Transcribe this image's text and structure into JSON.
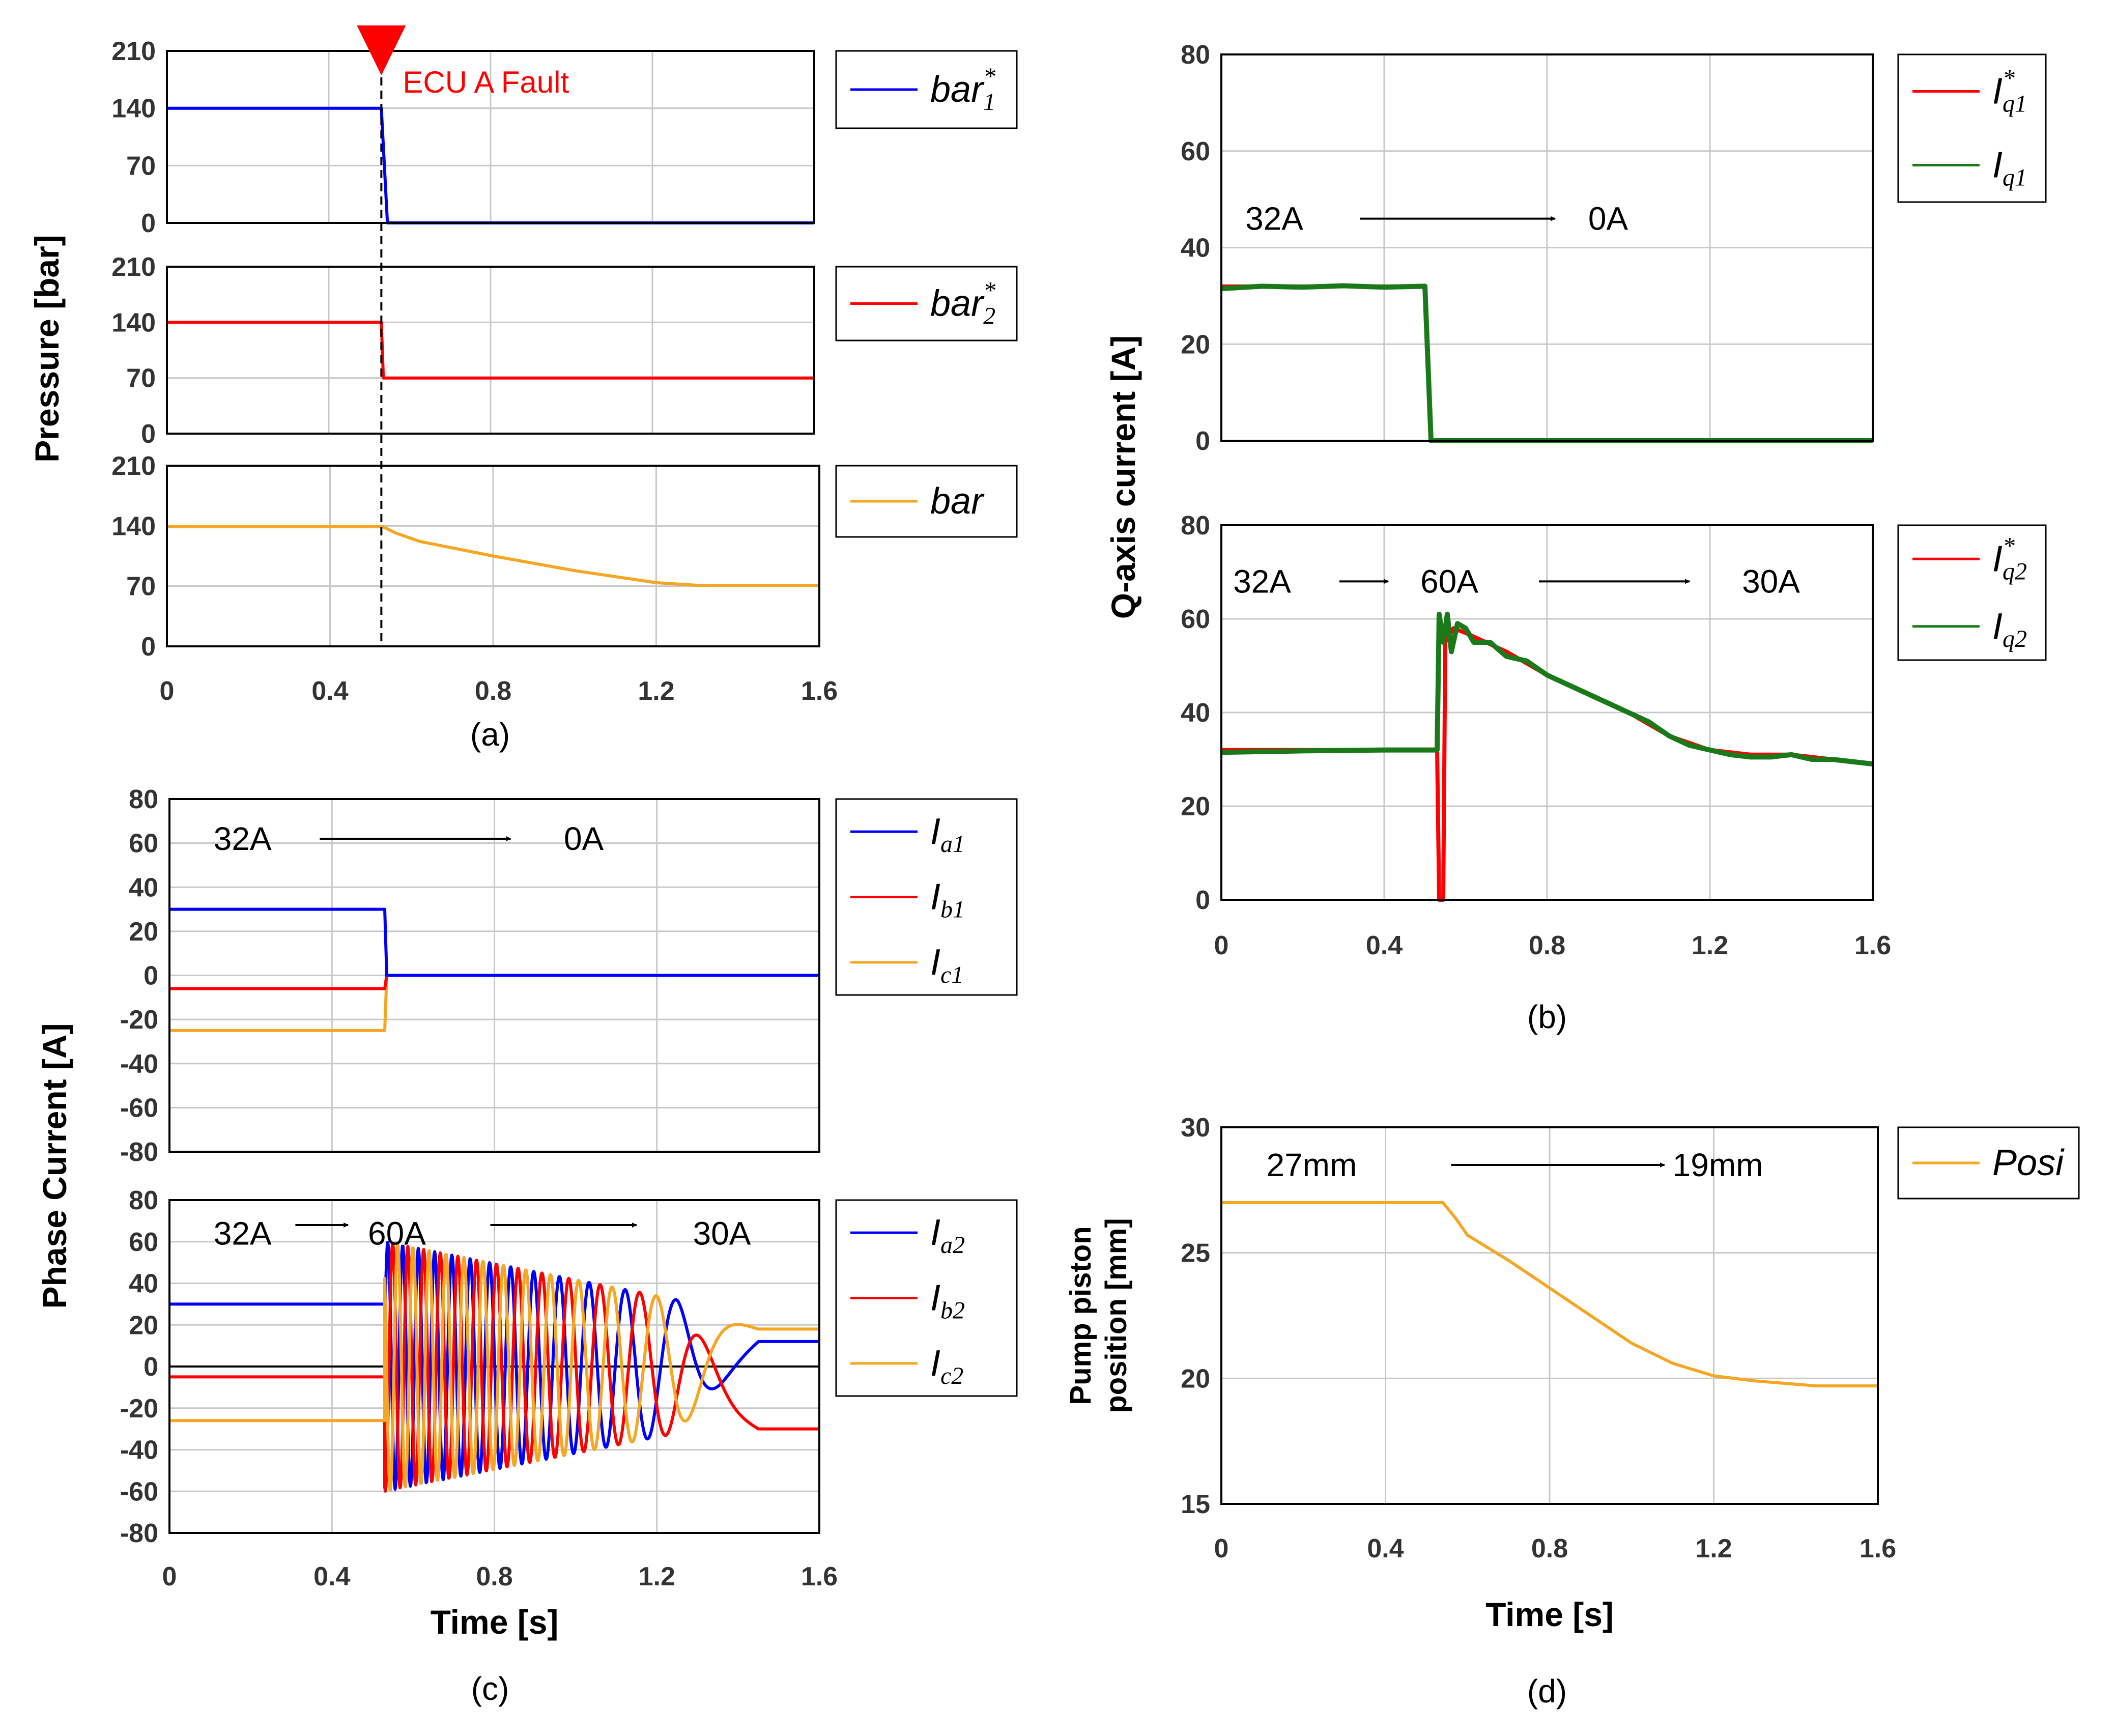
{
  "chart_data": [
    {
      "id": "a",
      "caption": "(a)",
      "type": "line",
      "ylabel": "Pressure [bar]",
      "fault_label": "ECU A Fault",
      "fault_time": 0.53,
      "x_ticks": [
        "0",
        "0.4",
        "0.8",
        "1.2",
        "1.6"
      ],
      "xlim": [
        0,
        1.6
      ],
      "subplots": [
        {
          "ylim": [
            0,
            210
          ],
          "y_ticks": [
            "0",
            "70",
            "140",
            "210"
          ],
          "legend": [
            {
              "label": "bar",
              "sub": "1",
              "sup": "*",
              "color": "#0000ff"
            }
          ],
          "series": [
            {
              "name": "bar1*",
              "color": "#0000ff",
              "points": [
                [
                  0,
                  140
                ],
                [
                  0.53,
                  140
                ],
                [
                  0.545,
                  0
                ],
                [
                  1.6,
                  0
                ]
              ]
            }
          ]
        },
        {
          "ylim": [
            0,
            210
          ],
          "y_ticks": [
            "0",
            "70",
            "140",
            "210"
          ],
          "legend": [
            {
              "label": "bar",
              "sub": "2",
              "sup": "*",
              "color": "#ff0000"
            }
          ],
          "series": [
            {
              "name": "bar2*",
              "color": "#ff0000",
              "points": [
                [
                  0,
                  140
                ],
                [
                  0.53,
                  140
                ],
                [
                  0.535,
                  70
                ],
                [
                  1.6,
                  70
                ]
              ]
            }
          ]
        },
        {
          "ylim": [
            0,
            210
          ],
          "y_ticks": [
            "0",
            "70",
            "140",
            "210"
          ],
          "legend": [
            {
              "label": "bar",
              "sub": "",
              "sup": "",
              "color": "#f5a623"
            }
          ],
          "series": [
            {
              "name": "bar",
              "color": "#f5a623",
              "points": [
                [
                  0,
                  139
                ],
                [
                  0.53,
                  139
                ],
                [
                  0.56,
                  132
                ],
                [
                  0.62,
                  122
                ],
                [
                  0.8,
                  105
                ],
                [
                  1.0,
                  88
                ],
                [
                  1.2,
                  74
                ],
                [
                  1.3,
                  71
                ],
                [
                  1.6,
                  71
                ]
              ]
            }
          ]
        }
      ]
    },
    {
      "id": "b",
      "caption": "(b)",
      "type": "line",
      "ylabel": "Q-axis current [A]",
      "x_ticks": [
        "0",
        "0.4",
        "0.8",
        "1.2",
        "1.6"
      ],
      "xlim": [
        0,
        1.6
      ],
      "subplots": [
        {
          "ylim": [
            0,
            80
          ],
          "y_ticks": [
            "0",
            "20",
            "40",
            "60",
            "80"
          ],
          "annotations": [
            {
              "text": "32A",
              "x": 0.13,
              "y": 46
            },
            {
              "text": "0A",
              "x": 0.95,
              "y": 46
            }
          ],
          "arrows": [
            {
              "x0": 0.34,
              "x1": 0.82,
              "y": 46
            }
          ],
          "legend": [
            {
              "label": "I",
              "sub": "q1",
              "sup": "*",
              "color": "#ff0000"
            },
            {
              "label": "I",
              "sub": "q1",
              "sup": "",
              "color": "#1a7a1a"
            }
          ],
          "series": [
            {
              "name": "Iq1*",
              "color": "#ff0000",
              "width": 7,
              "points": [
                [
                  0,
                  32
                ],
                [
                  0.5,
                  32
                ],
                [
                  0.515,
                  0
                ],
                [
                  1.6,
                  0
                ]
              ]
            },
            {
              "name": "Iq1",
              "color": "#1a7a1a",
              "width": 10,
              "points": [
                [
                  0,
                  31.5
                ],
                [
                  0.1,
                  32
                ],
                [
                  0.2,
                  31.8
                ],
                [
                  0.3,
                  32.1
                ],
                [
                  0.4,
                  31.8
                ],
                [
                  0.5,
                  32
                ],
                [
                  0.515,
                  0
                ],
                [
                  1.6,
                  0
                ]
              ]
            }
          ]
        },
        {
          "ylim": [
            0,
            80
          ],
          "y_ticks": [
            "0",
            "20",
            "40",
            "60",
            "80"
          ],
          "annotations": [
            {
              "text": "32A",
              "x": 0.1,
              "y": 68
            },
            {
              "text": "60A",
              "x": 0.56,
              "y": 68
            },
            {
              "text": "30A",
              "x": 1.35,
              "y": 68
            }
          ],
          "arrows": [
            {
              "x0": 0.29,
              "x1": 0.41,
              "y": 68
            },
            {
              "x0": 0.78,
              "x1": 1.15,
              "y": 68
            }
          ],
          "legend": [
            {
              "label": "I",
              "sub": "q2",
              "sup": "*",
              "color": "#ff0000"
            },
            {
              "label": "I",
              "sub": "q2",
              "sup": "",
              "color": "#1a7a1a"
            }
          ],
          "series": [
            {
              "name": "Iq2*",
              "color": "#ff0000",
              "width": 8,
              "points": [
                [
                  0,
                  32
                ],
                [
                  0.53,
                  32
                ],
                [
                  0.535,
                  0
                ],
                [
                  0.545,
                  0
                ],
                [
                  0.55,
                  55
                ],
                [
                  0.57,
                  58
                ],
                [
                  0.6,
                  57
                ],
                [
                  0.7,
                  53
                ],
                [
                  0.8,
                  48
                ],
                [
                  0.9,
                  44
                ],
                [
                  1.0,
                  40
                ],
                [
                  1.1,
                  35
                ],
                [
                  1.2,
                  32
                ],
                [
                  1.3,
                  31
                ],
                [
                  1.4,
                  31
                ],
                [
                  1.6,
                  29
                ]
              ]
            },
            {
              "name": "Iq2",
              "color": "#1a7a1a",
              "width": 10,
              "points": [
                [
                  0,
                  31.5
                ],
                [
                  0.2,
                  31.8
                ],
                [
                  0.4,
                  32
                ],
                [
                  0.53,
                  32
                ],
                [
                  0.535,
                  61
                ],
                [
                  0.545,
                  55
                ],
                [
                  0.555,
                  61
                ],
                [
                  0.565,
                  53
                ],
                [
                  0.58,
                  59
                ],
                [
                  0.6,
                  58
                ],
                [
                  0.62,
                  55
                ],
                [
                  0.66,
                  55
                ],
                [
                  0.7,
                  52
                ],
                [
                  0.75,
                  51
                ],
                [
                  0.8,
                  48
                ],
                [
                  0.85,
                  46
                ],
                [
                  0.9,
                  44
                ],
                [
                  0.95,
                  42
                ],
                [
                  1.0,
                  40
                ],
                [
                  1.05,
                  38
                ],
                [
                  1.1,
                  35
                ],
                [
                  1.15,
                  33
                ],
                [
                  1.2,
                  32
                ],
                [
                  1.25,
                  31
                ],
                [
                  1.3,
                  30.5
                ],
                [
                  1.35,
                  30.5
                ],
                [
                  1.4,
                  31
                ],
                [
                  1.45,
                  30
                ],
                [
                  1.5,
                  30
                ],
                [
                  1.6,
                  29
                ]
              ]
            }
          ]
        }
      ]
    },
    {
      "id": "c",
      "caption": "(c)",
      "type": "line",
      "ylabel": "Phase Current [A]",
      "xlabel": "Time [s]",
      "x_ticks": [
        "0",
        "0.4",
        "0.8",
        "1.2",
        "1.6"
      ],
      "xlim": [
        0,
        1.6
      ],
      "subplots": [
        {
          "ylim": [
            -80,
            80
          ],
          "y_ticks": [
            "-80",
            "-60",
            "-40",
            "-20",
            "0",
            "20",
            "40",
            "60",
            "80"
          ],
          "annotations": [
            {
              "text": "32A",
              "x": 0.18,
              "y": 62
            },
            {
              "text": "0A",
              "x": 1.02,
              "y": 62
            }
          ],
          "arrows": [
            {
              "x0": 0.37,
              "x1": 0.84,
              "y": 62
            }
          ],
          "legend": [
            {
              "label": "I",
              "sub": "a1",
              "sup": "",
              "color": "#0000ff"
            },
            {
              "label": "I",
              "sub": "b1",
              "sup": "",
              "color": "#ff0000"
            },
            {
              "label": "I",
              "sub": "c1",
              "sup": "",
              "color": "#f5a623"
            }
          ],
          "series": [
            {
              "name": "Ic1",
              "color": "#f5a623",
              "points": [
                [
                  0,
                  -25
                ],
                [
                  0.53,
                  -25
                ],
                [
                  0.535,
                  0
                ],
                [
                  1.6,
                  0
                ]
              ]
            },
            {
              "name": "Ib1",
              "color": "#ff0000",
              "points": [
                [
                  0,
                  -6
                ],
                [
                  0.53,
                  -6
                ],
                [
                  0.535,
                  0
                ],
                [
                  1.6,
                  0
                ]
              ]
            },
            {
              "name": "Ia1",
              "color": "#0000ff",
              "points": [
                [
                  0,
                  30
                ],
                [
                  0.53,
                  30
                ],
                [
                  0.535,
                  0
                ],
                [
                  1.6,
                  0
                ]
              ]
            }
          ]
        },
        {
          "ylim": [
            -80,
            80
          ],
          "y_ticks": [
            "-80",
            "-60",
            "-40",
            "-20",
            "0",
            "20",
            "40",
            "60",
            "80"
          ],
          "annotations": [
            {
              "text": "32A",
              "x": 0.18,
              "y": 64
            },
            {
              "text": "60A",
              "x": 0.56,
              "y": 64
            },
            {
              "text": "30A",
              "x": 1.36,
              "y": 64
            }
          ],
          "arrows": [
            {
              "x0": 0.31,
              "x1": 0.44,
              "y": 68
            },
            {
              "x0": 0.79,
              "x1": 1.15,
              "y": 68
            }
          ],
          "zero_line": true,
          "legend": [
            {
              "label": "I",
              "sub": "a2",
              "sup": "",
              "color": "#0000ff"
            },
            {
              "label": "I",
              "sub": "b2",
              "sup": "",
              "color": "#ff0000"
            },
            {
              "label": "I",
              "sub": "c2",
              "sup": "",
              "color": "#f5a623"
            }
          ],
          "phase_model": {
            "t_start": 0.53,
            "t_end_osc": 1.25,
            "freq_start_hz": 28,
            "freq_end_hz": 6,
            "amp_start": 60,
            "amp_end": 32,
            "pre_values": {
              "a": 30,
              "b": -5,
              "c": -26
            },
            "end_values": {
              "a": 12,
              "b": -30,
              "c": 18
            }
          },
          "series": [
            {
              "name": "Ia2",
              "color": "#0000ff"
            },
            {
              "name": "Ib2",
              "color": "#ff0000"
            },
            {
              "name": "Ic2",
              "color": "#f5a623"
            }
          ]
        }
      ]
    },
    {
      "id": "d",
      "caption": "(d)",
      "type": "line",
      "ylabel": "Pump piston position [mm]",
      "ylabel_lines": [
        "Pump piston",
        "position [mm]"
      ],
      "xlabel": "Time [s]",
      "x_ticks": [
        "0",
        "0.4",
        "0.8",
        "1.2",
        "1.6"
      ],
      "xlim": [
        0,
        1.6
      ],
      "subplots": [
        {
          "ylim": [
            15,
            30
          ],
          "y_ticks": [
            "15",
            "20",
            "25",
            "30"
          ],
          "annotations": [
            {
              "text": "27mm",
              "x": 0.22,
              "y": 28.5
            },
            {
              "text": "19mm",
              "x": 1.21,
              "y": 28.5
            }
          ],
          "arrows": [
            {
              "x0": 0.56,
              "x1": 1.08,
              "y": 28.5
            }
          ],
          "legend": [
            {
              "label": "Posi",
              "sub": "",
              "sup": "",
              "color": "#f5a623"
            }
          ],
          "series": [
            {
              "name": "Posi",
              "color": "#f5a623",
              "points": [
                [
                  0,
                  27
                ],
                [
                  0.54,
                  27
                ],
                [
                  0.57,
                  26.4
                ],
                [
                  0.6,
                  25.7
                ],
                [
                  0.7,
                  24.7
                ],
                [
                  0.8,
                  23.6
                ],
                [
                  0.9,
                  22.5
                ],
                [
                  1.0,
                  21.4
                ],
                [
                  1.1,
                  20.6
                ],
                [
                  1.2,
                  20.1
                ],
                [
                  1.3,
                  19.9
                ],
                [
                  1.45,
                  19.7
                ],
                [
                  1.6,
                  19.7
                ]
              ]
            }
          ]
        }
      ]
    }
  ]
}
